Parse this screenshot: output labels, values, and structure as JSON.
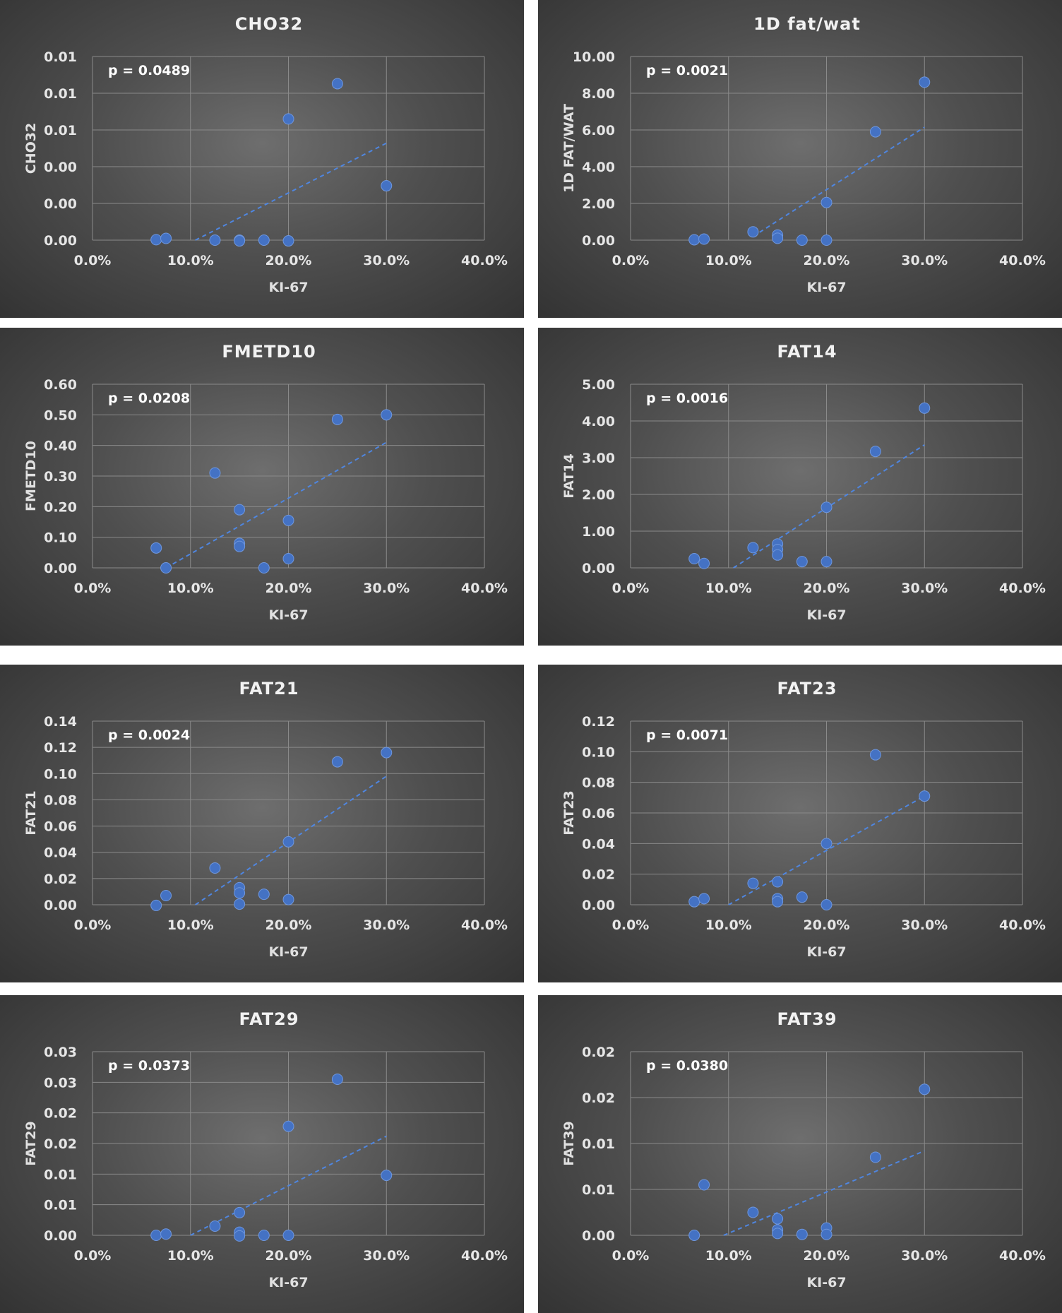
{
  "chart_data": [
    {
      "type": "scatter",
      "title": "CHO32",
      "xlabel": "KI-67",
      "ylabel": "CHO32",
      "annotation": "p = 0.0489",
      "xlim": [
        0,
        0.4
      ],
      "x_ticks": [
        "0.0%",
        "10.0%",
        "20.0%",
        "30.0%",
        "40.0%"
      ],
      "ylim": [
        0,
        0.0125
      ],
      "y_ticks": [
        "0.00",
        "0.00",
        "0.00",
        "0.01",
        "0.01",
        "0.01"
      ],
      "points": [
        {
          "x": 0.065,
          "y": 3e-05
        },
        {
          "x": 0.075,
          "y": 0.00012
        },
        {
          "x": 0.125,
          "y": 0.0
        },
        {
          "x": 0.15,
          "y": 0.0
        },
        {
          "x": 0.15,
          "y": -5e-05
        },
        {
          "x": 0.175,
          "y": 0.0
        },
        {
          "x": 0.2,
          "y": -5e-05
        },
        {
          "x": 0.2,
          "y": 0.00825
        },
        {
          "x": 0.25,
          "y": 0.01065
        },
        {
          "x": 0.3,
          "y": 0.0037
        }
      ],
      "trendline": {
        "x": [
          0.105,
          0.3
        ],
        "y": [
          0.0,
          0.0066
        ]
      },
      "grid": true,
      "legend": "none"
    },
    {
      "type": "scatter",
      "title": "1D fat/wat",
      "xlabel": "KI-67",
      "ylabel": "1D FAT/WAT",
      "annotation": "p = 0.0021",
      "xlim": [
        0,
        0.4
      ],
      "x_ticks": [
        "0.0%",
        "10.0%",
        "20.0%",
        "30.0%",
        "40.0%"
      ],
      "ylim": [
        0,
        10
      ],
      "y_ticks": [
        "0.00",
        "2.00",
        "4.00",
        "6.00",
        "8.00",
        "10.00"
      ],
      "points": [
        {
          "x": 0.065,
          "y": 0.02
        },
        {
          "x": 0.075,
          "y": 0.06
        },
        {
          "x": 0.125,
          "y": 0.45
        },
        {
          "x": 0.15,
          "y": 0.28
        },
        {
          "x": 0.15,
          "y": 0.1
        },
        {
          "x": 0.175,
          "y": 0.0
        },
        {
          "x": 0.2,
          "y": 0.0
        },
        {
          "x": 0.2,
          "y": 2.05
        },
        {
          "x": 0.25,
          "y": 5.9
        },
        {
          "x": 0.3,
          "y": 8.6
        }
      ],
      "trendline": {
        "x": [
          0.125,
          0.3
        ],
        "y": [
          0.2,
          6.15
        ]
      },
      "grid": true,
      "legend": "none"
    },
    {
      "type": "scatter",
      "title": "FMETD10",
      "xlabel": "KI-67",
      "ylabel": "FMETD10",
      "annotation": "p = 0.0208",
      "xlim": [
        0,
        0.4
      ],
      "x_ticks": [
        "0.0%",
        "10.0%",
        "20.0%",
        "30.0%",
        "40.0%"
      ],
      "ylim": [
        0,
        0.6
      ],
      "y_ticks": [
        "0.00",
        "0.10",
        "0.20",
        "0.30",
        "0.40",
        "0.50",
        "0.60"
      ],
      "points": [
        {
          "x": 0.065,
          "y": 0.065
        },
        {
          "x": 0.075,
          "y": 0.0
        },
        {
          "x": 0.125,
          "y": 0.31
        },
        {
          "x": 0.15,
          "y": 0.19
        },
        {
          "x": 0.15,
          "y": 0.08
        },
        {
          "x": 0.15,
          "y": 0.07
        },
        {
          "x": 0.175,
          "y": 0.0
        },
        {
          "x": 0.2,
          "y": 0.155
        },
        {
          "x": 0.2,
          "y": 0.03
        },
        {
          "x": 0.25,
          "y": 0.485
        },
        {
          "x": 0.3,
          "y": 0.5
        }
      ],
      "trendline": {
        "x": [
          0.075,
          0.3
        ],
        "y": [
          0.0,
          0.41
        ]
      },
      "grid": true,
      "legend": "none"
    },
    {
      "type": "scatter",
      "title": "FAT14",
      "xlabel": "KI-67",
      "ylabel": "FAT14",
      "annotation": "p = 0.0016",
      "xlim": [
        0,
        0.4
      ],
      "x_ticks": [
        "0.0%",
        "10.0%",
        "20.0%",
        "30.0%",
        "40.0%"
      ],
      "ylim": [
        0,
        5
      ],
      "y_ticks": [
        "0.00",
        "1.00",
        "2.00",
        "3.00",
        "4.00",
        "5.00"
      ],
      "points": [
        {
          "x": 0.065,
          "y": 0.25
        },
        {
          "x": 0.075,
          "y": 0.12
        },
        {
          "x": 0.125,
          "y": 0.55
        },
        {
          "x": 0.15,
          "y": 0.65
        },
        {
          "x": 0.15,
          "y": 0.5
        },
        {
          "x": 0.15,
          "y": 0.35
        },
        {
          "x": 0.175,
          "y": 0.17
        },
        {
          "x": 0.2,
          "y": 1.65
        },
        {
          "x": 0.2,
          "y": 0.17
        },
        {
          "x": 0.25,
          "y": 3.17
        },
        {
          "x": 0.3,
          "y": 4.35
        }
      ],
      "trendline": {
        "x": [
          0.105,
          0.3
        ],
        "y": [
          0.0,
          3.35
        ]
      },
      "grid": true,
      "legend": "none"
    },
    {
      "type": "scatter",
      "title": "FAT21",
      "xlabel": "KI-67",
      "ylabel": "FAT21",
      "annotation": "p = 0.0024",
      "xlim": [
        0,
        0.4
      ],
      "x_ticks": [
        "0.0%",
        "10.0%",
        "20.0%",
        "30.0%",
        "40.0%"
      ],
      "ylim": [
        0,
        0.14
      ],
      "y_ticks": [
        "0.00",
        "0.02",
        "0.04",
        "0.06",
        "0.08",
        "0.10",
        "0.12",
        "0.14"
      ],
      "points": [
        {
          "x": 0.065,
          "y": -0.0005
        },
        {
          "x": 0.075,
          "y": 0.007
        },
        {
          "x": 0.125,
          "y": 0.028
        },
        {
          "x": 0.15,
          "y": 0.013
        },
        {
          "x": 0.15,
          "y": 0.009
        },
        {
          "x": 0.15,
          "y": 0.0005
        },
        {
          "x": 0.175,
          "y": 0.008
        },
        {
          "x": 0.2,
          "y": 0.048
        },
        {
          "x": 0.2,
          "y": 0.004
        },
        {
          "x": 0.25,
          "y": 0.109
        },
        {
          "x": 0.3,
          "y": 0.116
        }
      ],
      "trendline": {
        "x": [
          0.105,
          0.3
        ],
        "y": [
          0.0,
          0.098
        ]
      },
      "grid": true,
      "legend": "none"
    },
    {
      "type": "scatter",
      "title": "FAT23",
      "xlabel": "KI-67",
      "ylabel": "FAT23",
      "annotation": "p = 0.0071",
      "xlim": [
        0,
        0.4
      ],
      "x_ticks": [
        "0.0%",
        "10.0%",
        "20.0%",
        "30.0%",
        "40.0%"
      ],
      "ylim": [
        0,
        0.12
      ],
      "y_ticks": [
        "0.00",
        "0.02",
        "0.04",
        "0.06",
        "0.08",
        "0.10",
        "0.12"
      ],
      "points": [
        {
          "x": 0.065,
          "y": 0.002
        },
        {
          "x": 0.075,
          "y": 0.004
        },
        {
          "x": 0.125,
          "y": 0.014
        },
        {
          "x": 0.15,
          "y": 0.015
        },
        {
          "x": 0.15,
          "y": 0.004
        },
        {
          "x": 0.15,
          "y": 0.002
        },
        {
          "x": 0.175,
          "y": 0.005
        },
        {
          "x": 0.2,
          "y": 0.04
        },
        {
          "x": 0.2,
          "y": 0.0
        },
        {
          "x": 0.25,
          "y": 0.098
        },
        {
          "x": 0.3,
          "y": 0.071
        }
      ],
      "trendline": {
        "x": [
          0.1,
          0.3
        ],
        "y": [
          0.0,
          0.071
        ]
      },
      "grid": true,
      "legend": "none"
    },
    {
      "type": "scatter",
      "title": "FAT29",
      "xlabel": "KI-67",
      "ylabel": "FAT29",
      "annotation": "p = 0.0373",
      "xlim": [
        0,
        0.4
      ],
      "x_ticks": [
        "0.0%",
        "10.0%",
        "20.0%",
        "30.0%",
        "40.0%"
      ],
      "ylim": [
        0,
        0.03
      ],
      "y_ticks": [
        "0.00",
        "0.01",
        "0.01",
        "0.02",
        "0.02",
        "0.03",
        "0.03"
      ],
      "points": [
        {
          "x": 0.065,
          "y": 0.0
        },
        {
          "x": 0.075,
          "y": 0.0002
        },
        {
          "x": 0.125,
          "y": 0.0015
        },
        {
          "x": 0.15,
          "y": 0.0037
        },
        {
          "x": 0.15,
          "y": 0.0005
        },
        {
          "x": 0.15,
          "y": -0.0001
        },
        {
          "x": 0.175,
          "y": 0.0
        },
        {
          "x": 0.2,
          "y": 0.0178
        },
        {
          "x": 0.2,
          "y": 0.0
        },
        {
          "x": 0.25,
          "y": 0.0255
        },
        {
          "x": 0.3,
          "y": 0.0098
        }
      ],
      "trendline": {
        "x": [
          0.1,
          0.3
        ],
        "y": [
          0.0,
          0.0162
        ]
      },
      "grid": true,
      "legend": "none"
    },
    {
      "type": "scatter",
      "title": "FAT39",
      "xlabel": "KI-67",
      "ylabel": "FAT39",
      "annotation": "p = 0.0380",
      "xlim": [
        0,
        0.4
      ],
      "x_ticks": [
        "0.0%",
        "10.0%",
        "20.0%",
        "30.0%",
        "40.0%"
      ],
      "ylim": [
        0,
        0.02
      ],
      "y_ticks": [
        "0.00",
        "0.01",
        "0.01",
        "0.02",
        "0.02"
      ],
      "points": [
        {
          "x": 0.065,
          "y": 0.0
        },
        {
          "x": 0.075,
          "y": 0.0055
        },
        {
          "x": 0.125,
          "y": 0.0025
        },
        {
          "x": 0.15,
          "y": 0.0018
        },
        {
          "x": 0.15,
          "y": 0.0006
        },
        {
          "x": 0.15,
          "y": 0.0002
        },
        {
          "x": 0.175,
          "y": 0.0001
        },
        {
          "x": 0.2,
          "y": 0.0008
        },
        {
          "x": 0.2,
          "y": 0.0001
        },
        {
          "x": 0.25,
          "y": 0.0085
        },
        {
          "x": 0.3,
          "y": 0.0159
        }
      ],
      "trendline": {
        "x": [
          0.095,
          0.3
        ],
        "y": [
          0.0,
          0.0092
        ]
      },
      "grid": true,
      "legend": "none"
    }
  ]
}
